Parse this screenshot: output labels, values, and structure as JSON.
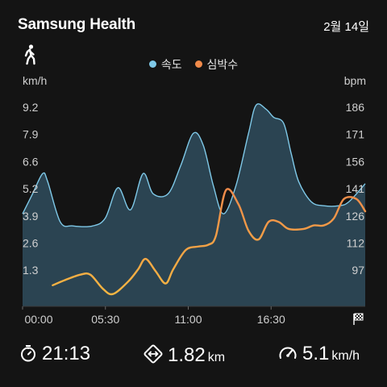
{
  "header": {
    "app_title": "Samsung Health",
    "date": "2월 14일",
    "activity_icon": "walking-icon"
  },
  "legend": {
    "speed_label": "속도",
    "heart_label": "심박수"
  },
  "colors": {
    "speed": "#7fc9e8",
    "speed_fill": "#2b4452",
    "heart": "#f5b642",
    "heart_end": "#f08a4a",
    "background": "#141414"
  },
  "chart_data": {
    "type": "area",
    "left_unit": "km/h",
    "right_unit": "bpm",
    "left_ticks": [
      "9.2",
      "7.9",
      "6.6",
      "5.2",
      "3.9",
      "2.6",
      "1.3"
    ],
    "right_ticks": [
      "186",
      "171",
      "156",
      "141",
      "126",
      "112",
      "97"
    ],
    "x_ticks": [
      "00:00",
      "05:30",
      "11:00",
      "16:30"
    ],
    "x_tick_minutes": [
      0,
      330,
      660,
      990
    ],
    "x_range_minutes": [
      0,
      1365
    ],
    "ylim_speed": [
      0,
      10.5
    ],
    "ylim_bpm": [
      80,
      200
    ],
    "series": [
      {
        "name": "속도",
        "axis": "left",
        "x": [
          0,
          40,
          80,
          100,
          150,
          200,
          280,
          330,
          380,
          430,
          480,
          520,
          580,
          630,
          680,
          720,
          760,
          800,
          850,
          900,
          930,
          970,
          1000,
          1040,
          1070,
          1100,
          1150,
          1200,
          1260,
          1300,
          1365
        ],
        "y": [
          4.6,
          5.6,
          6.6,
          6.2,
          4.2,
          4.0,
          4.0,
          4.4,
          5.9,
          4.8,
          6.6,
          5.6,
          5.6,
          7.0,
          8.6,
          8.0,
          6.0,
          4.6,
          6.0,
          8.6,
          10.0,
          9.8,
          9.4,
          9.1,
          7.6,
          6.2,
          5.2,
          5.0,
          5.0,
          5.2,
          6.1
        ]
      },
      {
        "name": "심박수",
        "axis": "right",
        "x": [
          120,
          170,
          230,
          270,
          320,
          360,
          420,
          460,
          490,
          530,
          570,
          600,
          650,
          700,
          740,
          770,
          810,
          860,
          900,
          940,
          980,
          1020,
          1060,
          1120,
          1160,
          1200,
          1240,
          1280,
          1330,
          1365
        ],
        "y": [
          92,
          95,
          98,
          98,
          90,
          87,
          94,
          101,
          107,
          100,
          93,
          101,
          112,
          114,
          115,
          120,
          146,
          138,
          123,
          118,
          128,
          128,
          124,
          124,
          126,
          126,
          130,
          141,
          141,
          134
        ]
      }
    ]
  },
  "stats": {
    "duration": "21:13",
    "distance_value": "1.82",
    "distance_unit": "km",
    "speed_value": "5.1",
    "speed_unit": "km/h",
    "duration_icon": "stopwatch-icon",
    "distance_icon": "distance-arrows-icon",
    "speed_icon": "speedometer-icon",
    "finish_icon": "finish-flag-icon"
  }
}
